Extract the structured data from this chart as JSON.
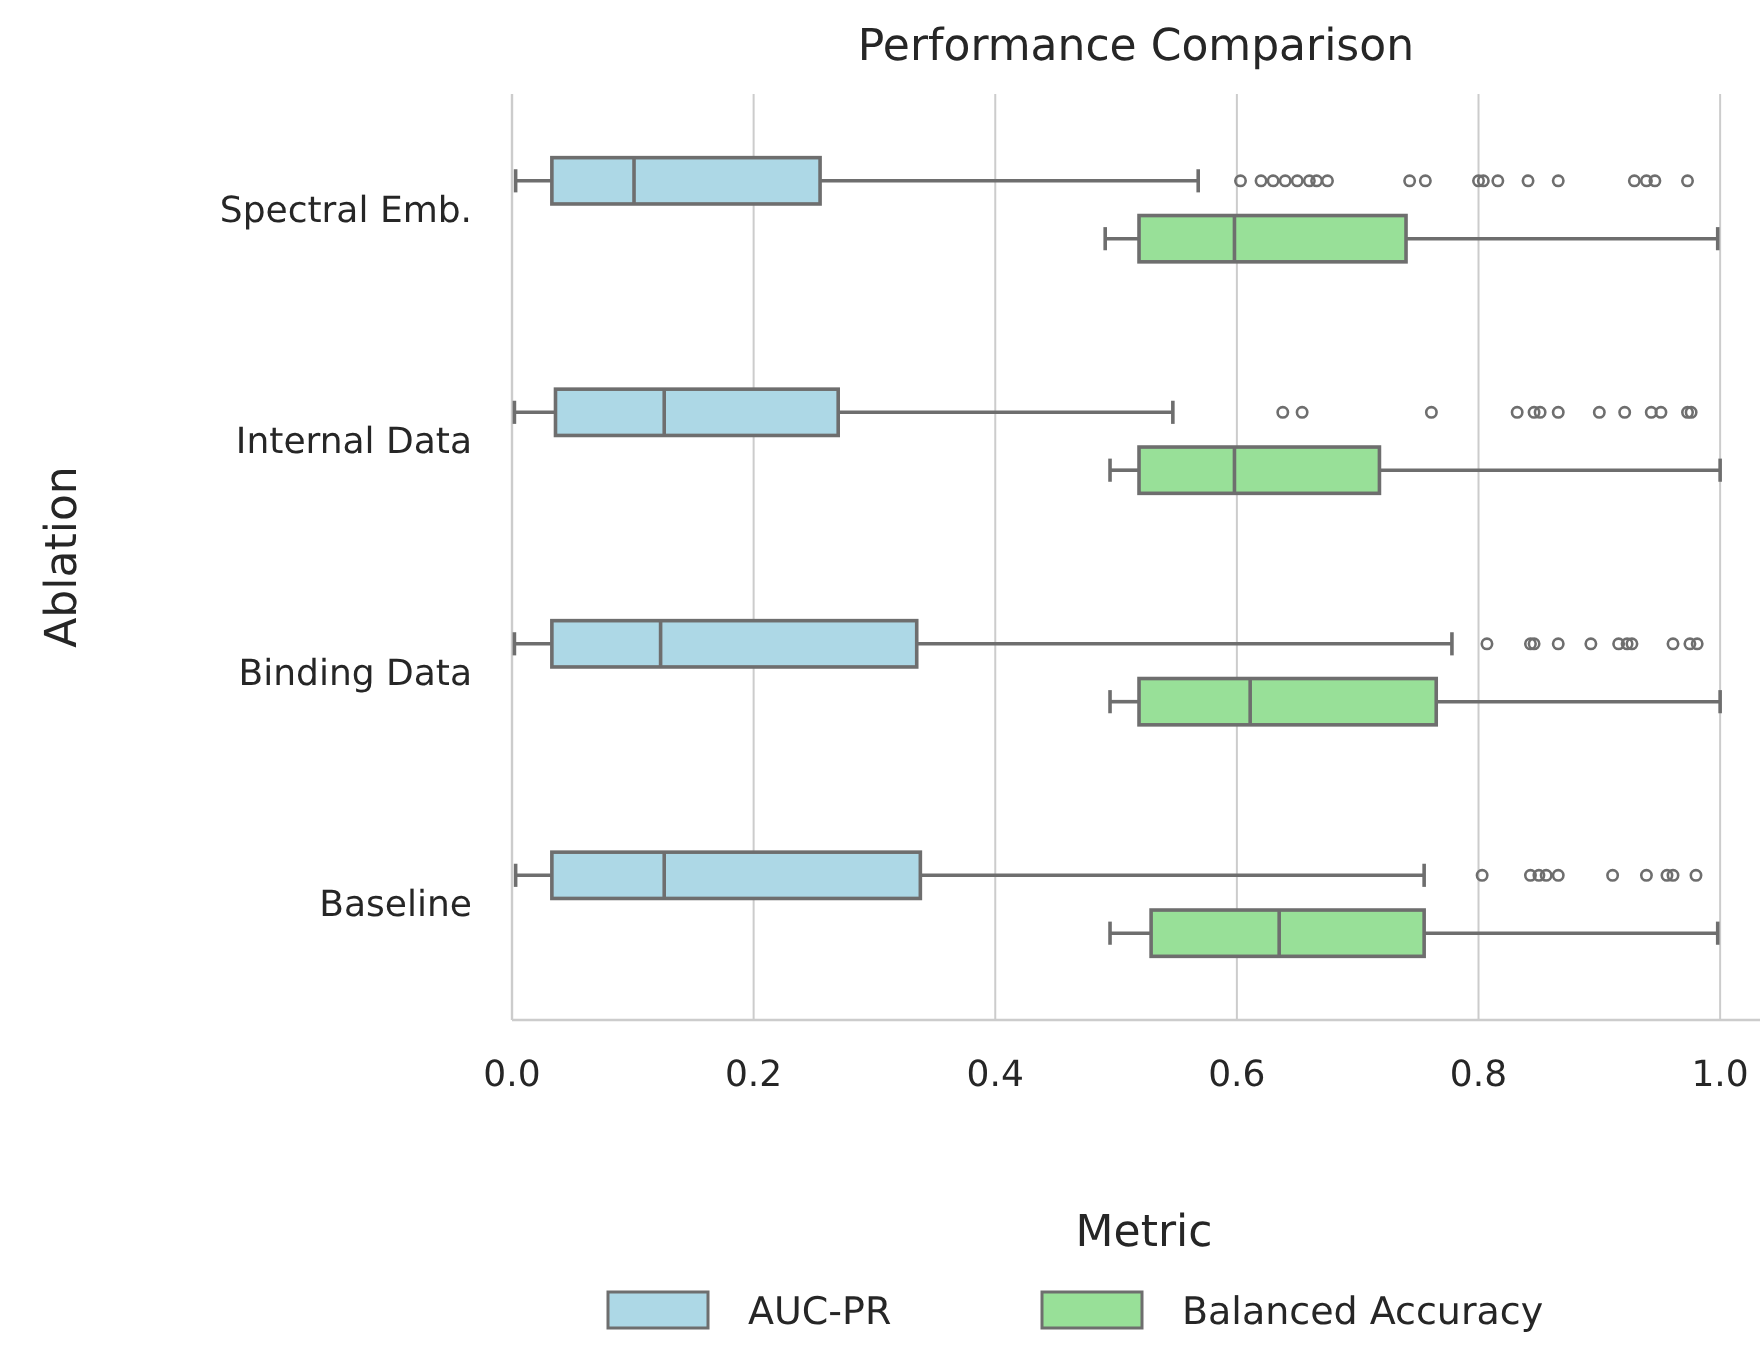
{
  "chart_data": {
    "type": "box",
    "title": "Performance Comparison",
    "ylabel": "Ablation",
    "legend_title": "Metric",
    "orientation": "horizontal",
    "categories": [
      "Spectral Emb.",
      "Internal Data",
      "Binding Data",
      "Baseline"
    ],
    "xlim": [
      0,
      1.033
    ],
    "xticks": [
      {
        "value": 0,
        "label": "0.0"
      },
      0.2,
      0.4,
      0.6,
      0.8,
      {
        "value": 1,
        "label": "1.0"
      }
    ],
    "grid": "x",
    "legend": "bottom",
    "series": [
      {
        "name": "AUC-PR",
        "color": "#add8e6",
        "boxes": [
          {
            "low": 0.003,
            "q1": 0.033,
            "median": 0.101,
            "q3": 0.255,
            "high": 0.568,
            "outliers": [
              0.603,
              0.62,
              0.63,
              0.64,
              0.65,
              0.66,
              0.666,
              0.675,
              0.743,
              0.756,
              0.8,
              0.804,
              0.816,
              0.841,
              0.866,
              0.929,
              0.939,
              0.946,
              0.973
            ]
          },
          {
            "low": 0.002,
            "q1": 0.036,
            "median": 0.126,
            "q3": 0.27,
            "high": 0.547,
            "outliers": [
              0.638,
              0.654,
              0.761,
              0.832,
              0.846,
              0.851,
              0.866,
              0.9,
              0.921,
              0.943,
              0.951,
              0.973,
              0.976
            ]
          },
          {
            "low": 0.002,
            "q1": 0.033,
            "median": 0.123,
            "q3": 0.335,
            "high": 0.778,
            "outliers": [
              0.807,
              0.843,
              0.846,
              0.866,
              0.893,
              0.916,
              0.923,
              0.927,
              0.961,
              0.975,
              0.981
            ]
          },
          {
            "low": 0.003,
            "q1": 0.033,
            "median": 0.126,
            "q3": 0.338,
            "high": 0.755,
            "outliers": [
              0.803,
              0.843,
              0.85,
              0.856,
              0.866,
              0.911,
              0.939,
              0.956,
              0.961,
              0.98
            ]
          }
        ]
      },
      {
        "name": "Balanced Accuracy",
        "color": "#98e098",
        "boxes": [
          {
            "low": 0.491,
            "q1": 0.519,
            "median": 0.598,
            "q3": 0.74,
            "high": 0.998
          },
          {
            "low": 0.495,
            "q1": 0.519,
            "median": 0.598,
            "q3": 0.718,
            "high": 1.0
          },
          {
            "low": 0.495,
            "q1": 0.519,
            "median": 0.611,
            "q3": 0.765,
            "high": 1.0
          },
          {
            "low": 0.495,
            "q1": 0.529,
            "median": 0.635,
            "q3": 0.755,
            "high": 0.998
          }
        ]
      }
    ]
  }
}
